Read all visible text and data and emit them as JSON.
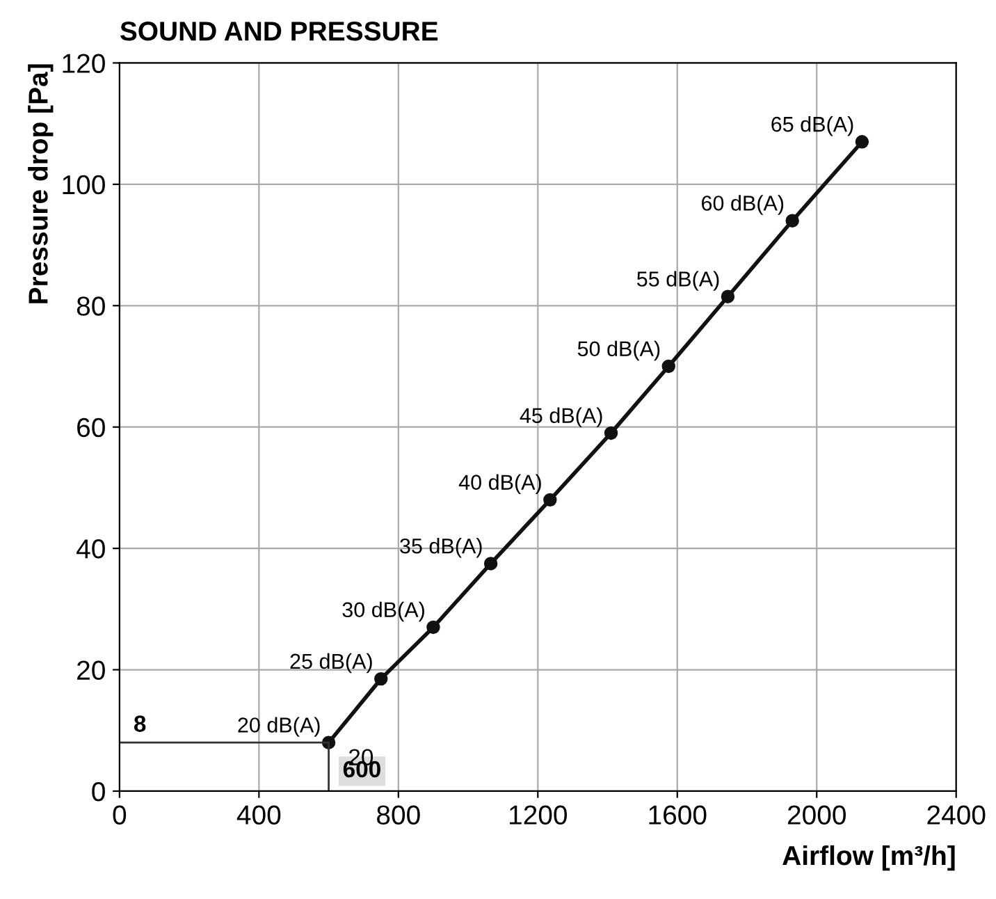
{
  "chart_data": {
    "type": "line",
    "title": "SOUND AND PRESSURE",
    "xlabel": "Airflow [m³/h]",
    "ylabel": "Pressure drop [Pa]",
    "x": [
      600,
      750,
      900,
      1065,
      1235,
      1410,
      1575,
      1745,
      1930,
      2130
    ],
    "series": [
      {
        "color": "#111111",
        "values": [
          8,
          18.5,
          27,
          37.5,
          48,
          59,
          70,
          81.5,
          94,
          107
        ]
      }
    ],
    "annotations": [
      {
        "text": "20 dB(A)",
        "x": 600,
        "y": 8
      },
      {
        "text": "25 dB(A)",
        "x": 750,
        "y": 18.5
      },
      {
        "text": "30 dB(A)",
        "x": 900,
        "y": 27
      },
      {
        "text": "35 dB(A)",
        "x": 1065,
        "y": 37.5
      },
      {
        "text": "40 dB(A)",
        "x": 1235,
        "y": 48
      },
      {
        "text": "45 dB(A)",
        "x": 1410,
        "y": 59
      },
      {
        "text": "50 dB(A)",
        "x": 1575,
        "y": 70
      },
      {
        "text": "55 dB(A)",
        "x": 1745,
        "y": 81.5
      },
      {
        "text": "60 dB(A)",
        "x": 1930,
        "y": 94
      },
      {
        "text": "65 dB(A)",
        "x": 2130,
        "y": 107
      },
      {
        "text": "20",
        "x": 600,
        "y": 8
      }
    ],
    "ref_lines": [
      {
        "axis": "y",
        "value": 8,
        "label": "8",
        "color": "#333333"
      },
      {
        "axis": "x",
        "value": 600,
        "label": "600",
        "color": "#333333"
      }
    ],
    "xlim": [
      0,
      2400
    ],
    "ylim": [
      0,
      120
    ],
    "xticks": [
      0,
      400,
      800,
      1200,
      1600,
      2000,
      2400
    ],
    "yticks": [
      0,
      20,
      40,
      60,
      80,
      100,
      120
    ],
    "grid": true,
    "marker": "circle",
    "line_style": "solid"
  }
}
